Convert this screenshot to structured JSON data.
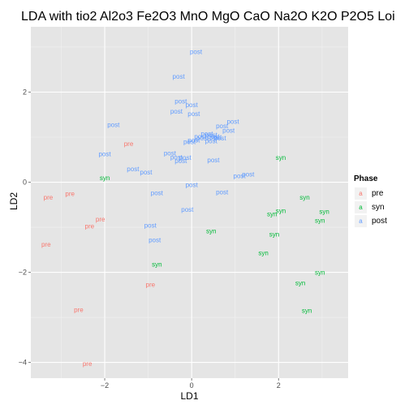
{
  "chart_data": {
    "type": "scatter",
    "title": "LDA with tio2 Al2o3 Fe2O3 MnO MgO CaO Na2O K2O P2O5 Loi",
    "xlabel": "LD1",
    "ylabel": "LD2",
    "xlim": [
      -3.7,
      3.6
    ],
    "ylim": [
      -4.35,
      3.45
    ],
    "x_ticks": [
      -2,
      0,
      2
    ],
    "y_ticks": [
      -4,
      -2,
      0,
      2
    ],
    "grid": true,
    "legend": {
      "title": "Phase",
      "position": "right",
      "glyph": "a",
      "items": [
        {
          "name": "pre",
          "color": "#F8766D"
        },
        {
          "name": "syn",
          "color": "#00BA38"
        },
        {
          "name": "post",
          "color": "#619CFF"
        }
      ]
    },
    "series": [
      {
        "name": "pre",
        "color": "#F8766D",
        "points": [
          {
            "x": -1.45,
            "y": 0.86
          },
          {
            "x": -3.3,
            "y": -0.33
          },
          {
            "x": -2.8,
            "y": -0.25
          },
          {
            "x": -2.1,
            "y": -0.82
          },
          {
            "x": -2.35,
            "y": -0.97
          },
          {
            "x": -3.35,
            "y": -1.38
          },
          {
            "x": -0.95,
            "y": -2.27
          },
          {
            "x": -2.6,
            "y": -2.83
          },
          {
            "x": -2.4,
            "y": -4.03
          }
        ]
      },
      {
        "name": "syn",
        "color": "#00BA38",
        "points": [
          {
            "x": 2.05,
            "y": 0.55
          },
          {
            "x": -2.0,
            "y": 0.1
          },
          {
            "x": 2.6,
            "y": -0.33
          },
          {
            "x": 3.05,
            "y": -0.65
          },
          {
            "x": 2.05,
            "y": -0.63
          },
          {
            "x": 1.85,
            "y": -0.7
          },
          {
            "x": 2.95,
            "y": -0.85
          },
          {
            "x": 0.45,
            "y": -1.08
          },
          {
            "x": 1.9,
            "y": -1.15
          },
          {
            "x": 1.65,
            "y": -1.57
          },
          {
            "x": -0.8,
            "y": -1.82
          },
          {
            "x": 2.95,
            "y": -2.0
          },
          {
            "x": 2.5,
            "y": -2.23
          },
          {
            "x": 2.65,
            "y": -2.85
          }
        ]
      },
      {
        "name": "post",
        "color": "#619CFF",
        "points": [
          {
            "x": 0.1,
            "y": 2.9
          },
          {
            "x": -0.3,
            "y": 2.35
          },
          {
            "x": -0.25,
            "y": 1.8
          },
          {
            "x": 0.0,
            "y": 1.72
          },
          {
            "x": -0.35,
            "y": 1.58
          },
          {
            "x": 0.05,
            "y": 1.52
          },
          {
            "x": -1.8,
            "y": 1.28
          },
          {
            "x": 0.95,
            "y": 1.35
          },
          {
            "x": 0.7,
            "y": 1.25
          },
          {
            "x": 0.85,
            "y": 1.15
          },
          {
            "x": 0.35,
            "y": 1.08
          },
          {
            "x": 0.45,
            "y": 1.05
          },
          {
            "x": 0.5,
            "y": 1.02
          },
          {
            "x": 0.2,
            "y": 1.02
          },
          {
            "x": 0.55,
            "y": 1.0
          },
          {
            "x": 0.25,
            "y": 0.98
          },
          {
            "x": 0.05,
            "y": 0.94
          },
          {
            "x": 0.45,
            "y": 0.92
          },
          {
            "x": 0.65,
            "y": 0.98
          },
          {
            "x": -0.05,
            "y": 0.9
          },
          {
            "x": -2.0,
            "y": 0.63
          },
          {
            "x": -0.5,
            "y": 0.65
          },
          {
            "x": -0.35,
            "y": 0.56
          },
          {
            "x": -0.15,
            "y": 0.55
          },
          {
            "x": 0.5,
            "y": 0.5
          },
          {
            "x": -0.25,
            "y": 0.48
          },
          {
            "x": -1.35,
            "y": 0.3
          },
          {
            "x": -1.05,
            "y": 0.23
          },
          {
            "x": 1.3,
            "y": 0.18
          },
          {
            "x": 1.1,
            "y": 0.14
          },
          {
            "x": 0.0,
            "y": -0.05
          },
          {
            "x": -0.8,
            "y": -0.23
          },
          {
            "x": 0.7,
            "y": -0.22
          },
          {
            "x": -0.1,
            "y": -0.6
          },
          {
            "x": -0.95,
            "y": -0.95
          },
          {
            "x": -0.85,
            "y": -1.28
          }
        ]
      }
    ]
  }
}
